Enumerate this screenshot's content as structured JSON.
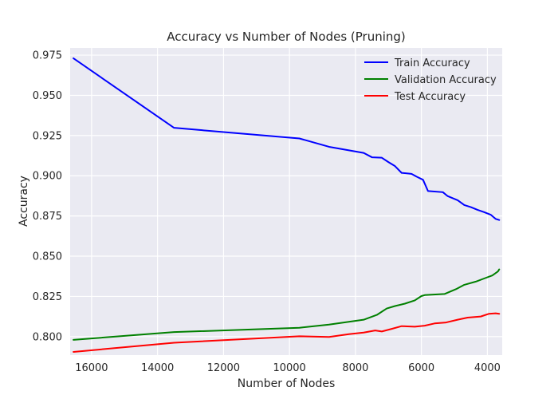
{
  "chart_data": {
    "type": "line",
    "title": "Accuracy vs Number of Nodes (Pruning)",
    "xlabel": "Number of Nodes",
    "ylabel": "Accuracy",
    "xlim": [
      16650,
      3550
    ],
    "ylim": [
      0.7885,
      0.9795
    ],
    "x_reversed": true,
    "xticks": [
      16000,
      14000,
      12000,
      10000,
      8000,
      6000,
      4000
    ],
    "xtick_labels": [
      "16000",
      "14000",
      "12000",
      "10000",
      "8000",
      "6000",
      "4000"
    ],
    "yticks": [
      0.8,
      0.825,
      0.85,
      0.875,
      0.9,
      0.925,
      0.95,
      0.975
    ],
    "ytick_labels": [
      "0.800",
      "0.825",
      "0.850",
      "0.875",
      "0.900",
      "0.925",
      "0.950",
      "0.975"
    ],
    "grid": true,
    "legend_position": "top-right",
    "background": "#eaeaf2",
    "series": [
      {
        "name": "Train Accuracy",
        "color": "#0000ff",
        "points": [
          [
            16550,
            0.973
          ],
          [
            13500,
            0.9298
          ],
          [
            9700,
            0.9232
          ],
          [
            8800,
            0.918
          ],
          [
            7750,
            0.9142
          ],
          [
            7500,
            0.9115
          ],
          [
            7200,
            0.9112
          ],
          [
            7000,
            0.9085
          ],
          [
            6800,
            0.906
          ],
          [
            6600,
            0.9018
          ],
          [
            6300,
            0.9012
          ],
          [
            6150,
            0.8995
          ],
          [
            5950,
            0.8975
          ],
          [
            5800,
            0.8905
          ],
          [
            5350,
            0.8898
          ],
          [
            5200,
            0.8873
          ],
          [
            4900,
            0.8848
          ],
          [
            4700,
            0.8818
          ],
          [
            4500,
            0.8805
          ],
          [
            4300,
            0.8788
          ],
          [
            4100,
            0.8774
          ],
          [
            3900,
            0.8758
          ],
          [
            3750,
            0.8732
          ],
          [
            3640,
            0.8725
          ]
        ]
      },
      {
        "name": "Validation Accuracy",
        "color": "#008000",
        "points": [
          [
            16550,
            0.798
          ],
          [
            13500,
            0.8028
          ],
          [
            9700,
            0.8055
          ],
          [
            8800,
            0.8075
          ],
          [
            7750,
            0.8105
          ],
          [
            7350,
            0.8135
          ],
          [
            7050,
            0.8175
          ],
          [
            6800,
            0.819
          ],
          [
            6500,
            0.8205
          ],
          [
            6200,
            0.8225
          ],
          [
            6000,
            0.8252
          ],
          [
            5900,
            0.8258
          ],
          [
            5300,
            0.8265
          ],
          [
            4950,
            0.8295
          ],
          [
            4700,
            0.8322
          ],
          [
            4350,
            0.8342
          ],
          [
            4050,
            0.8365
          ],
          [
            3850,
            0.838
          ],
          [
            3680,
            0.8405
          ],
          [
            3640,
            0.8418
          ]
        ]
      },
      {
        "name": "Test Accuracy",
        "color": "#ff0000",
        "points": [
          [
            16550,
            0.7905
          ],
          [
            13500,
            0.7962
          ],
          [
            9700,
            0.8002
          ],
          [
            8800,
            0.7998
          ],
          [
            8200,
            0.8015
          ],
          [
            7750,
            0.8025
          ],
          [
            7400,
            0.8038
          ],
          [
            7200,
            0.8032
          ],
          [
            6900,
            0.8048
          ],
          [
            6600,
            0.8065
          ],
          [
            6200,
            0.8062
          ],
          [
            5900,
            0.8068
          ],
          [
            5600,
            0.8082
          ],
          [
            5250,
            0.8088
          ],
          [
            4900,
            0.8105
          ],
          [
            4600,
            0.8118
          ],
          [
            4200,
            0.8125
          ],
          [
            3950,
            0.8142
          ],
          [
            3750,
            0.8145
          ],
          [
            3640,
            0.8142
          ]
        ]
      }
    ]
  }
}
